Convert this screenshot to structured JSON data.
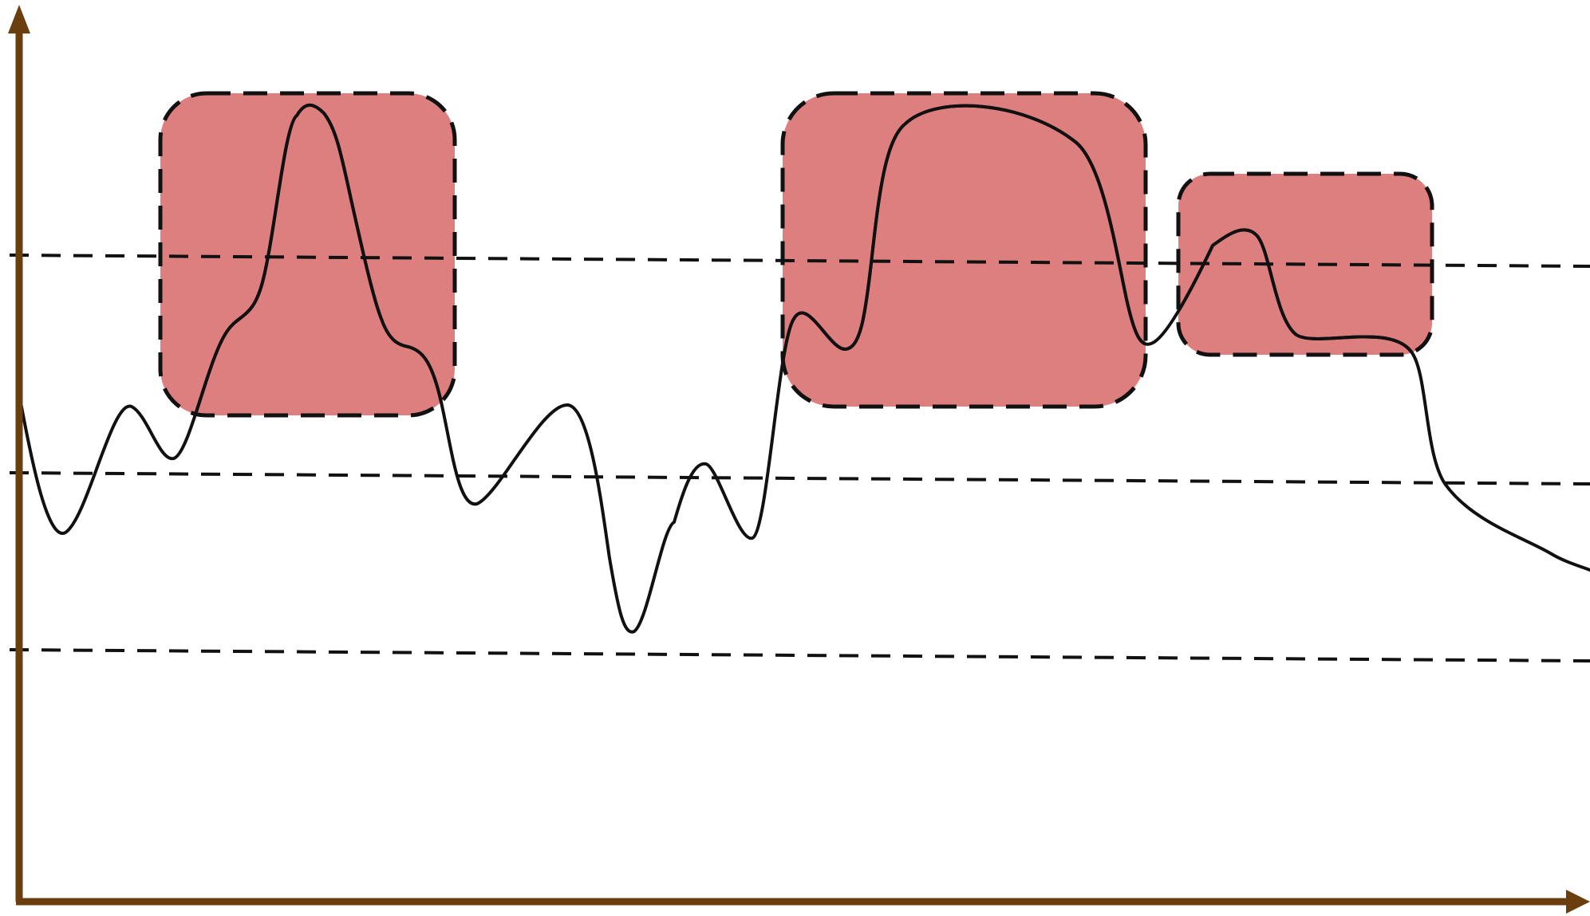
{
  "diagram": {
    "colors": {
      "background": "#ffffff",
      "axis": "#6b3f0d",
      "signal": "#111111",
      "signal_in_region": "#5a0000",
      "threshold": "#111111",
      "region_fill": "#de7f7f",
      "region_border": "#111111"
    },
    "axes": {
      "x_arrow": true,
      "y_arrow": true
    },
    "threshold_lines": [
      {
        "name": "upper-threshold"
      },
      {
        "name": "middle-threshold"
      },
      {
        "name": "lower-threshold"
      }
    ],
    "highlighted_regions": [
      {
        "name": "region-1"
      },
      {
        "name": "region-2"
      },
      {
        "name": "region-3"
      }
    ],
    "signal": {
      "name": "waveform"
    }
  }
}
